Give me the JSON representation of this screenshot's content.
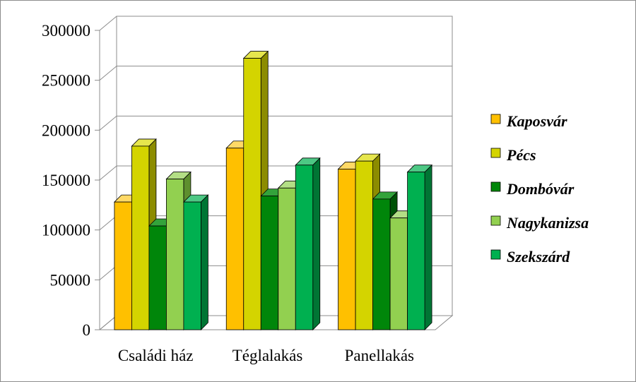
{
  "chart_data": {
    "type": "bar",
    "categories": [
      "Családi ház",
      "Téglalakás",
      "Panellakás"
    ],
    "series": [
      {
        "name": "Kaposvár",
        "values": [
          128000,
          182000,
          161000
        ],
        "color": "#FFC000",
        "side": "#B38600",
        "top": "#FFD966"
      },
      {
        "name": "Pécs",
        "values": [
          184000,
          272000,
          169000
        ],
        "color": "#D4D400",
        "side": "#8C8C00",
        "top": "#E6E64D"
      },
      {
        "name": "Dombóvár",
        "values": [
          104000,
          134000,
          131000
        ],
        "color": "#00860A",
        "side": "#005206",
        "top": "#33A33B"
      },
      {
        "name": "Nagykanizsa",
        "values": [
          151000,
          142000,
          112000
        ],
        "color": "#92D050",
        "side": "#5E8F2E",
        "top": "#B3DE85"
      },
      {
        "name": "Szekszárd",
        "values": [
          128000,
          165000,
          158000
        ],
        "color": "#00B050",
        "side": "#007534",
        "top": "#4DC884"
      }
    ],
    "yticks": [
      "0",
      "50000",
      "100000",
      "150000",
      "200000",
      "250000",
      "300000"
    ],
    "ylim": [
      0,
      300000
    ],
    "legend_position": "right",
    "grid": true
  }
}
